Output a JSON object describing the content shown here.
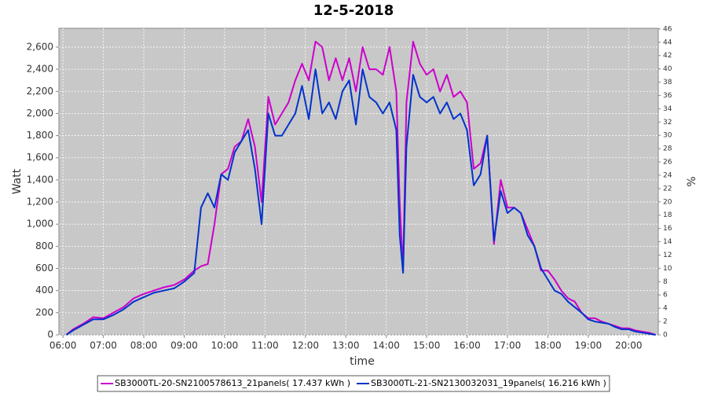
{
  "chart_data": {
    "type": "line",
    "title": "12-5-2018",
    "x_label": "time",
    "y_label": "Watt",
    "y2_label": "%",
    "x": [
      "06:05",
      "06:15",
      "06:30",
      "06:45",
      "07:00",
      "07:15",
      "07:30",
      "07:45",
      "08:00",
      "08:15",
      "08:30",
      "08:45",
      "09:00",
      "09:15",
      "09:25",
      "09:35",
      "09:45",
      "09:55",
      "10:05",
      "10:15",
      "10:25",
      "10:35",
      "10:45",
      "10:55",
      "11:05",
      "11:15",
      "11:25",
      "11:35",
      "11:45",
      "11:55",
      "12:05",
      "12:15",
      "12:25",
      "12:35",
      "12:45",
      "12:55",
      "13:05",
      "13:15",
      "13:25",
      "13:35",
      "13:45",
      "13:55",
      "14:05",
      "14:15",
      "14:20",
      "14:25",
      "14:30",
      "14:40",
      "14:50",
      "15:00",
      "15:10",
      "15:20",
      "15:30",
      "15:40",
      "15:50",
      "16:00",
      "16:10",
      "16:20",
      "16:30",
      "16:40",
      "16:50",
      "17:00",
      "17:10",
      "17:20",
      "17:30",
      "17:40",
      "17:50",
      "18:00",
      "18:10",
      "18:20",
      "18:30",
      "18:40",
      "18:50",
      "19:00",
      "19:10",
      "19:20",
      "19:30",
      "19:40",
      "19:50",
      "20:00",
      "20:10",
      "20:20",
      "20:30",
      "20:40"
    ],
    "series": [
      {
        "name": "SB3000TL-20-SN2100578613_21panels( 17.437 kWh )",
        "color": "#cc00cc",
        "values": [
          0,
          50,
          100,
          160,
          150,
          200,
          250,
          330,
          370,
          400,
          430,
          450,
          500,
          580,
          620,
          640,
          1000,
          1450,
          1500,
          1700,
          1750,
          1950,
          1700,
          1200,
          2150,
          1900,
          2000,
          2100,
          2300,
          2450,
          2300,
          2650,
          2600,
          2300,
          2500,
          2300,
          2500,
          2200,
          2600,
          2400,
          2400,
          2350,
          2600,
          2200,
          1200,
          580,
          2100,
          2650,
          2450,
          2350,
          2400,
          2200,
          2350,
          2150,
          2200,
          2100,
          1500,
          1550,
          1800,
          820,
          1400,
          1150,
          1150,
          1100,
          950,
          800,
          580,
          580,
          500,
          400,
          330,
          300,
          200,
          150,
          150,
          120,
          100,
          80,
          60,
          60,
          40,
          30,
          20,
          0
        ]
      },
      {
        "name": "SB3000TL-21-SN2130032031_19panels( 16.216 kWh )",
        "color": "#0033cc",
        "values": [
          0,
          40,
          90,
          140,
          140,
          180,
          230,
          300,
          340,
          380,
          400,
          420,
          480,
          560,
          1150,
          1280,
          1150,
          1450,
          1400,
          1650,
          1750,
          1850,
          1500,
          1000,
          2000,
          1800,
          1800,
          1900,
          2000,
          2250,
          1950,
          2400,
          2000,
          2100,
          1950,
          2200,
          2300,
          1900,
          2400,
          2150,
          2100,
          2000,
          2100,
          1850,
          900,
          560,
          1700,
          2350,
          2150,
          2100,
          2150,
          2000,
          2100,
          1950,
          2000,
          1850,
          1350,
          1450,
          1800,
          850,
          1300,
          1100,
          1150,
          1100,
          900,
          800,
          600,
          500,
          400,
          370,
          300,
          250,
          200,
          140,
          120,
          110,
          100,
          70,
          50,
          50,
          30,
          20,
          10,
          0
        ]
      }
    ],
    "xlim": [
      "05:54",
      "20:44"
    ],
    "xticks": [
      "06:00",
      "07:00",
      "08:00",
      "09:00",
      "10:00",
      "11:00",
      "12:00",
      "13:00",
      "14:00",
      "15:00",
      "16:00",
      "17:00",
      "18:00",
      "19:00",
      "20:00"
    ],
    "ylim": [
      0,
      2770
    ],
    "yticks": [
      0,
      200,
      400,
      600,
      800,
      {
        "value": 1000,
        "label": "1,000"
      },
      {
        "value": 1200,
        "label": "1,200"
      },
      {
        "value": 1400,
        "label": "1,400"
      },
      {
        "value": 1600,
        "label": "1,600"
      },
      {
        "value": 1800,
        "label": "1,800"
      },
      {
        "value": 2000,
        "label": "2,000"
      },
      {
        "value": 2200,
        "label": "2,200"
      },
      {
        "value": 2400,
        "label": "2,400"
      },
      {
        "value": 2600,
        "label": "2,600"
      }
    ],
    "y2lim": [
      0,
      46.1
    ],
    "y2ticks": [
      0,
      2,
      4,
      6,
      8,
      10,
      12,
      14,
      16,
      18,
      20,
      22,
      24,
      26,
      28,
      30,
      32,
      34,
      36,
      38,
      40,
      42,
      44,
      46
    ],
    "grid": true,
    "background": "#c8c8c8",
    "legend": "bottom"
  }
}
